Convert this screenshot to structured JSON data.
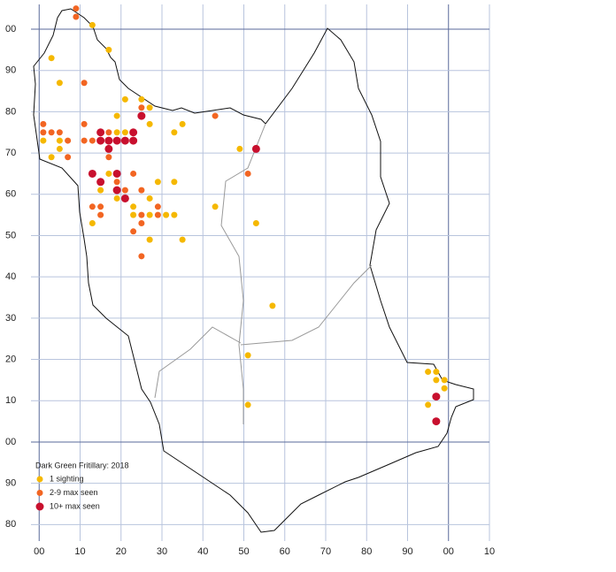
{
  "chart_data": {
    "type": "scatter",
    "legend_title": "Dark Green Fritillary:  2018",
    "xlim": [
      -2,
      110
    ],
    "ylim": [
      -24,
      106
    ],
    "xticks": [
      {
        "value": 0,
        "label": "00"
      },
      10,
      20,
      30,
      40,
      50,
      60,
      70,
      80,
      90,
      {
        "value": 100,
        "label": "00"
      },
      {
        "value": 110,
        "label": "10"
      }
    ],
    "yticks": [
      {
        "value": 100,
        "label": "00"
      },
      90,
      80,
      70,
      60,
      50,
      40,
      30,
      20,
      10,
      {
        "value": 0,
        "label": "00"
      },
      {
        "value": -10,
        "label": "90"
      },
      {
        "value": -20,
        "label": "80"
      }
    ],
    "series": [
      {
        "name": "1 sighting",
        "color": "#f5b800",
        "x": [
          13,
          3,
          17,
          5,
          21,
          25,
          27,
          19,
          27,
          35,
          33,
          1,
          5,
          5,
          3,
          19,
          21,
          49,
          17,
          29,
          33,
          15,
          19,
          27,
          43,
          23,
          23,
          27,
          31,
          33,
          13,
          53,
          27,
          35,
          57,
          51,
          51,
          95,
          97,
          97,
          99,
          99,
          95
        ],
        "y": [
          101,
          93,
          95,
          87,
          83,
          83,
          81,
          79,
          77,
          77,
          75,
          73,
          73,
          71,
          69,
          75,
          75,
          71,
          65,
          63,
          63,
          61,
          59,
          59,
          57,
          57,
          55,
          55,
          55,
          55,
          53,
          53,
          49,
          49,
          33,
          21,
          9,
          17,
          17,
          15,
          15,
          13,
          9
        ]
      },
      {
        "name": "2-9 max seen",
        "color": "#f26522",
        "x": [
          9,
          9,
          11,
          1,
          11,
          43,
          25,
          1,
          3,
          5,
          7,
          11,
          13,
          17,
          7,
          17,
          51,
          23,
          19,
          21,
          25,
          15,
          13,
          15,
          25,
          29,
          29,
          25,
          23,
          25
        ],
        "y": [
          105,
          103,
          87,
          77,
          77,
          79,
          81,
          75,
          75,
          75,
          73,
          73,
          73,
          75,
          69,
          69,
          65,
          65,
          63,
          61,
          61,
          57,
          57,
          55,
          55,
          57,
          55,
          53,
          51,
          45
        ]
      },
      {
        "name": "10+ max seen",
        "color": "#c8102e",
        "x": [
          25,
          15,
          23,
          15,
          17,
          19,
          21,
          23,
          17,
          53,
          13,
          19,
          15,
          19,
          21,
          97,
          97
        ],
        "y": [
          79,
          75,
          75,
          73,
          73,
          73,
          73,
          73,
          71,
          71,
          65,
          65,
          63,
          61,
          59,
          11,
          5
        ]
      }
    ]
  }
}
